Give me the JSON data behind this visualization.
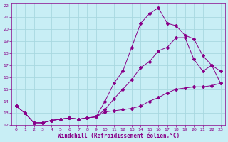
{
  "xlabel": "Windchill (Refroidissement éolien,°C)",
  "bg_color": "#c8eef5",
  "grid_color": "#a8d8e0",
  "line_color": "#880088",
  "xlim": [
    -0.5,
    23.5
  ],
  "ylim": [
    12,
    22.2
  ],
  "xticks": [
    0,
    1,
    2,
    3,
    4,
    5,
    6,
    7,
    8,
    9,
    10,
    11,
    12,
    13,
    14,
    15,
    16,
    17,
    18,
    19,
    20,
    21,
    22,
    23
  ],
  "yticks": [
    12,
    13,
    14,
    15,
    16,
    17,
    18,
    19,
    20,
    21,
    22
  ],
  "line1_x": [
    0,
    1,
    2,
    3,
    4,
    5,
    6,
    7,
    8,
    9,
    10,
    11,
    12,
    13,
    14,
    15,
    16,
    17,
    18,
    19,
    20,
    21,
    22,
    23
  ],
  "line1_y": [
    13.6,
    13.0,
    12.2,
    12.2,
    12.4,
    12.5,
    12.6,
    12.5,
    12.6,
    12.7,
    13.1,
    13.2,
    13.3,
    13.4,
    13.6,
    14.0,
    14.3,
    14.7,
    15.0,
    15.1,
    15.2,
    15.2,
    15.3,
    15.5
  ],
  "line2_x": [
    0,
    1,
    2,
    3,
    4,
    5,
    6,
    7,
    8,
    9,
    10,
    11,
    12,
    13,
    14,
    15,
    16,
    17,
    18,
    19,
    20,
    21,
    22,
    23
  ],
  "line2_y": [
    13.6,
    13.0,
    12.2,
    12.2,
    12.4,
    12.5,
    12.6,
    12.5,
    12.6,
    12.7,
    13.3,
    14.2,
    15.0,
    15.8,
    16.8,
    17.3,
    18.2,
    18.5,
    19.3,
    19.3,
    17.5,
    16.5,
    17.0,
    16.5
  ],
  "line3_x": [
    0,
    1,
    2,
    3,
    4,
    5,
    6,
    7,
    8,
    9,
    10,
    11,
    12,
    13,
    14,
    15,
    16,
    17,
    18,
    19,
    20,
    21,
    22,
    23
  ],
  "line3_y": [
    13.6,
    13.0,
    12.2,
    12.2,
    12.4,
    12.5,
    12.6,
    12.5,
    12.6,
    12.7,
    14.0,
    15.5,
    16.5,
    18.5,
    20.5,
    21.3,
    21.8,
    20.5,
    20.3,
    19.5,
    19.2,
    17.8,
    17.0,
    15.5
  ]
}
